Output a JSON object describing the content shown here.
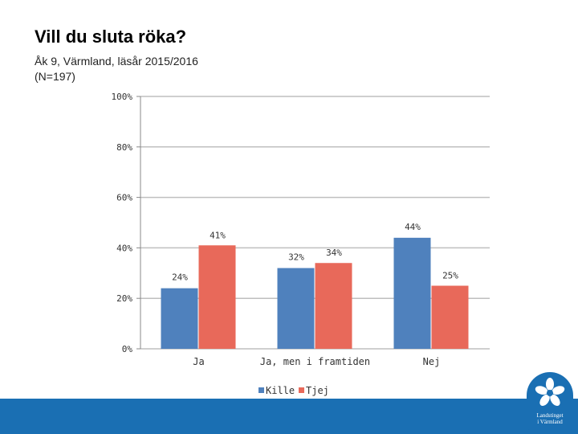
{
  "slide": {
    "title": "Vill du sluta röka?",
    "subtitle_line1": "Åk 9, Värmland, läsår 2015/2016",
    "subtitle_line2": "(N=197)"
  },
  "logo": {
    "name": "Landstinget i Värmland",
    "line1": "Landstinget",
    "line2": "i Värmland"
  },
  "chart_data": {
    "type": "bar",
    "categories": [
      "Ja",
      "Ja, men i framtiden",
      "Nej"
    ],
    "series": [
      {
        "name": "Kille",
        "values": [
          24,
          32,
          44
        ],
        "labels": [
          "24%",
          "32%",
          "44%"
        ],
        "color": "#4f81bd"
      },
      {
        "name": "Tjej",
        "values": [
          41,
          34,
          25
        ],
        "labels": [
          "41%",
          "34%",
          "25%"
        ],
        "color": "#e8695a"
      }
    ],
    "ylim": [
      0,
      100
    ],
    "yticks": [
      0,
      20,
      40,
      60,
      80,
      100
    ],
    "ytick_labels": [
      "0%",
      "20%",
      "40%",
      "60%",
      "80%",
      "100%"
    ],
    "grid": true,
    "legend_position": "bottom",
    "xlabel": "",
    "ylabel": ""
  }
}
